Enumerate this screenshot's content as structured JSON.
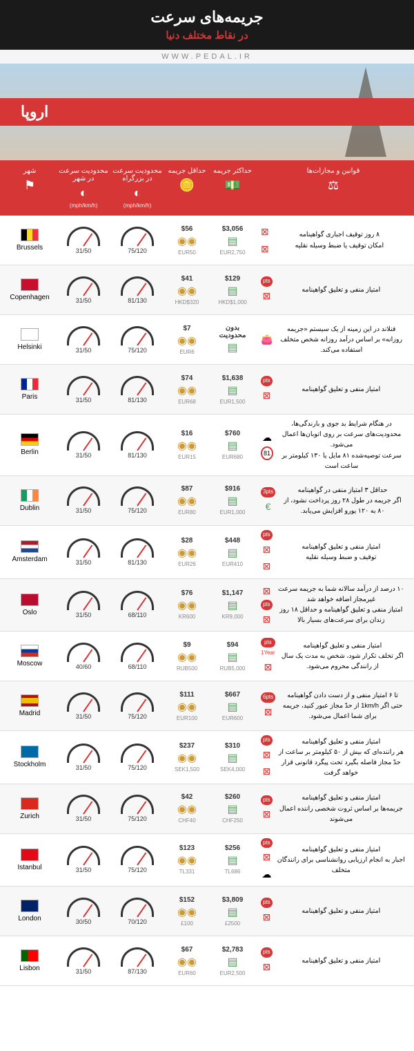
{
  "header": {
    "title": "جریمه‌های سرعت",
    "subtitle": "در نقاط مختلف دنیا",
    "watermark": "WWW.PEDAL.IR",
    "region": "اروپا"
  },
  "columns": {
    "city": "شهر",
    "cityLimit": "محدودیت سرعت در\nشهر",
    "hwyLimit": "محدودیت سرعت در\nبزرگراه",
    "unit": "(mph/km/h)",
    "minFine": "حداقل\nجریمه",
    "maxFine": "حداکثر\nجریمه",
    "laws": "قوانین و مجازات‌ها"
  },
  "rows": [
    {
      "city": "Brussels",
      "flag": "be",
      "cl": "31/50",
      "hl": "75/120",
      "minD": "$56",
      "minL": "EUR50",
      "maxD": "$3,056",
      "maxL": "EUR2,750",
      "law": "۸ روز توقیف اجباری گواهینامه\nامکان توقیف یا ضبط وسیله نقلیه",
      "b": [
        "bx",
        "bx"
      ]
    },
    {
      "city": "Copenhagen",
      "flag": "dk",
      "cl": "31/50",
      "hl": "81/130",
      "minD": "$41",
      "minL": "HKD$320",
      "maxD": "$129",
      "maxL": "HKD$1,000",
      "law": "امتیاز منفی و تعلیق گواهینامه",
      "b": [
        "pt",
        "bx"
      ]
    },
    {
      "city": "Helsinki",
      "flag": "fi",
      "cl": "31/50",
      "hl": "75/120",
      "minD": "$7",
      "minL": "EUR6",
      "maxD": "بدون\nمحدودیت",
      "maxL": "",
      "law": "فنلاند در این زمینه از یک سیستم «جریمه روزانه» بر اساس درآمد روزانه شخص متخلف استفاده می‌کند.",
      "b": [
        "wl"
      ]
    },
    {
      "city": "Paris",
      "flag": "fr",
      "cl": "31/50",
      "hl": "81/130",
      "minD": "$74",
      "minL": "EUR68",
      "maxD": "$1,638",
      "maxL": "EUR1,500",
      "law": "امتیاز منفی و تعلیق گواهینامه",
      "b": [
        "pt",
        "bx"
      ]
    },
    {
      "city": "Berlin",
      "flag": "de",
      "cl": "31/50",
      "hl": "81/130",
      "minD": "$16",
      "minL": "EUR15",
      "maxD": "$760",
      "maxL": "EUR680",
      "law": "در هنگام شرایط بد جوی و بارندگی‌ها، محدودیت‌های سرعت بر روی اتوبان‌ها اعمال می‌شود.\nسرعت توصیه‌شده ۸۱ مایل یا ۱۳۰ کیلومتر بر ساعت است",
      "b": [
        "cl",
        "81"
      ]
    },
    {
      "city": "Dublin",
      "flag": "ie",
      "cl": "31/50",
      "hl": "75/120",
      "minD": "$87",
      "minL": "EUR80",
      "maxD": "$916",
      "maxL": "EUR1,000",
      "law": "حداقل ۳ امتیاز منفی در گواهینامه\nاگر جریمه در طول ۲۸ روز پرداخت نشود، از ۸۰ به ۱۲۰ یورو افزایش می‌یابد.",
      "b": [
        "3p",
        "eu"
      ]
    },
    {
      "city": "Amsterdam",
      "flag": "nl",
      "cl": "31/50",
      "hl": "81/130",
      "minD": "$28",
      "minL": "EUR26",
      "maxD": "$448",
      "maxL": "EUR410",
      "law": "امتیاز منفی و تعلیق گواهینامه\nتوقیف و ضبط وسیله نقلیه",
      "b": [
        "pt",
        "bx",
        "bx"
      ]
    },
    {
      "city": "Oslo",
      "flag": "no",
      "cl": "31/50",
      "hl": "68/110",
      "minD": "$76",
      "minL": "KR600",
      "maxD": "$1,147",
      "maxL": "KR9,000",
      "law": "۱۰ درصد از درآمد سالانه شما به جریمه سرعت غیرمجاز اضافه خواهد شد\nامتیاز منفی و تعلیق گواهینامه و حداقل ۱۸ روز زندان برای سرعت‌های بسیار بالا",
      "b": [
        "bx",
        "pt",
        "bx"
      ]
    },
    {
      "city": "Moscow",
      "flag": "ru",
      "cl": "40/60",
      "hl": "68/110",
      "minD": "$9",
      "minL": "RUB500",
      "maxD": "$94",
      "maxL": "RUB5,000",
      "law": "امتیاز منفی و تعلیق گواهینامه\nاگر تخلف تکرار شود، شخص به مدت یک سال از رانندگی محروم می‌شود.",
      "b": [
        "pt",
        "1y",
        "bx"
      ]
    },
    {
      "city": "Madrid",
      "flag": "es",
      "cl": "31/50",
      "hl": "75/120",
      "minD": "$111",
      "minL": "EUR100",
      "maxD": "$667",
      "maxL": "EUR600",
      "law": "تا ۶ امتیاز منفی و از دست دادن گواهینامه\nحتی اگر 1km/h از حدّ مجاز عبور کنید، جریمه برای شما اعمال می‌شود.",
      "b": [
        "6p",
        "bx"
      ]
    },
    {
      "city": "Stockholm",
      "flag": "se",
      "cl": "31/50",
      "hl": "75/120",
      "minD": "$237",
      "minL": "SEK1,500",
      "maxD": "$310",
      "maxL": "SEK4,000",
      "law": "امتیاز منفی و تعلیق گواهینامه\nهر راننده‌ای که بیش از ۵۰ کیلومتر بر ساعت از حدّ مجاز فاصله بگیرد تحت پیگرد قانونی قرار خواهد گرفت",
      "b": [
        "pt",
        "bx",
        "bx"
      ]
    },
    {
      "city": "Zurich",
      "flag": "ch",
      "cl": "31/50",
      "hl": "75/120",
      "minD": "$42",
      "minL": "CHF40",
      "maxD": "$260",
      "maxL": "CHF250",
      "law": "امتیاز منفی و تعلیق گواهینامه\nجریمه‌ها بر اساس ثروت شخصی راننده اعمال می‌شوند",
      "b": [
        "pt",
        "bx"
      ]
    },
    {
      "city": "Istanbul",
      "flag": "tr",
      "cl": "31/50",
      "hl": "75/120",
      "minD": "$123",
      "minL": "TL331",
      "maxD": "$256",
      "maxL": "TL686",
      "law": "امتیاز منفی و تعلیق گواهینامه\nاجبار به انجام ارزیابی روانشناسی برای رانندگان متخلف",
      "b": [
        "pt",
        "bx",
        "cl"
      ]
    },
    {
      "city": "London",
      "flag": "gb",
      "cl": "30/50",
      "hl": "70/120",
      "minD": "$152",
      "minL": "£100",
      "maxD": "$3,809",
      "maxL": "£2500",
      "law": "امتیاز منفی و تعلیق گواهینامه",
      "b": [
        "pt",
        "bx"
      ]
    },
    {
      "city": "Lisbon",
      "flag": "pt",
      "cl": "31/50",
      "hl": "87/130",
      "minD": "$67",
      "minL": "EUR60",
      "maxD": "$2,783",
      "maxL": "EUR2,500",
      "law": "امتیاز منفی و تعلیق گواهینامه",
      "b": [
        "pt",
        "bx"
      ]
    }
  ],
  "flags": {
    "be": "linear-gradient(90deg,#000 33%,#fdda24 33% 66%,#ef3340 66%)",
    "dk": "#c8102e",
    "fi": "#fff",
    "fr": "linear-gradient(90deg,#002395 33%,#fff 33% 66%,#ed2939 66%)",
    "de": "linear-gradient(#000 33%,#dd0000 33% 66%,#ffce00 66%)",
    "ie": "linear-gradient(90deg,#169b62 33%,#fff 33% 66%,#ff883e 66%)",
    "nl": "linear-gradient(#ae1c28 33%,#fff 33% 66%,#21468b 66%)",
    "no": "#ba0c2f",
    "ru": "linear-gradient(#fff 33%,#0039a6 33% 66%,#d52b1e 66%)",
    "es": "linear-gradient(#aa151b 25%,#f1bf00 25% 75%,#aa151b 75%)",
    "se": "#006aa7",
    "ch": "#da291c",
    "tr": "#e30a17",
    "gb": "#012169",
    "pt": "linear-gradient(90deg,#006600 40%,#ff0000 40%)"
  }
}
